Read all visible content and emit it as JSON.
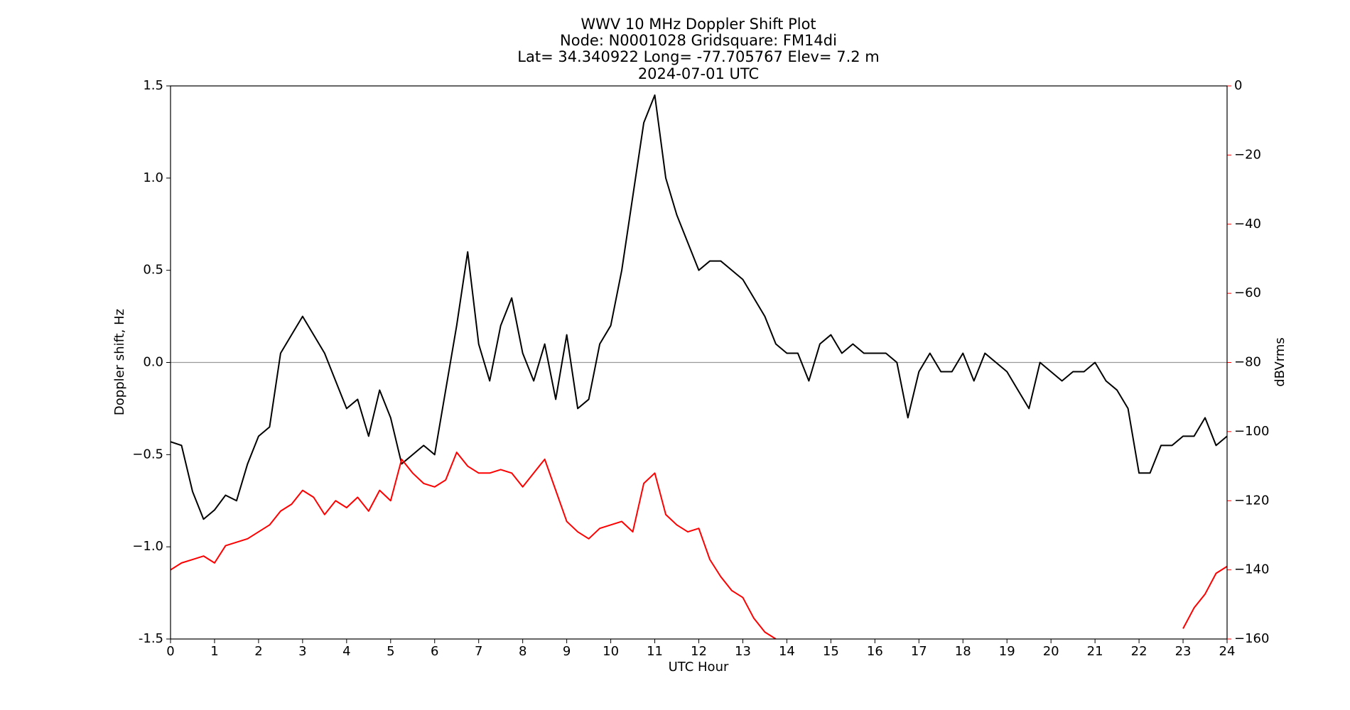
{
  "chart_data": {
    "type": "line",
    "title": [
      "WWV 10 MHz Doppler Shift Plot",
      "Node:  N0001028     Gridsquare:  FM14di",
      "Lat=   34.340922    Long= -77.705767    Elev= 7.2 m",
      "2024-07-01  UTC"
    ],
    "xlabel": "UTC Hour",
    "ylabel": "Doppler shift, Hz",
    "y2label": "dBVrms",
    "x": [
      0,
      0.25,
      0.5,
      0.75,
      1,
      1.25,
      1.5,
      1.75,
      2,
      2.25,
      2.5,
      2.75,
      3,
      3.25,
      3.5,
      3.75,
      4,
      4.25,
      4.5,
      4.75,
      5,
      5.25,
      5.5,
      5.75,
      6,
      6.25,
      6.5,
      6.75,
      7,
      7.25,
      7.5,
      7.75,
      8,
      8.25,
      8.5,
      8.75,
      9,
      9.25,
      9.5,
      9.75,
      10,
      10.25,
      10.5,
      10.75,
      11,
      11.25,
      11.5,
      11.75,
      12,
      12.25,
      12.5,
      12.75,
      13,
      13.25,
      13.5,
      13.75,
      14,
      14.25,
      14.5,
      14.75,
      15,
      15.25,
      15.5,
      15.75,
      16,
      16.25,
      16.5,
      16.75,
      17,
      17.25,
      17.5,
      17.75,
      18,
      18.25,
      18.5,
      18.75,
      19,
      19.25,
      19.5,
      19.75,
      20,
      20.25,
      20.5,
      20.75,
      21,
      21.25,
      21.5,
      21.75,
      22,
      22.25,
      22.5,
      22.75,
      23,
      23.25,
      23.5,
      23.75,
      24
    ],
    "series": [
      {
        "color": "#000000",
        "values": [
          -0.43,
          -0.45,
          -0.7,
          -0.85,
          -0.8,
          -0.72,
          -0.75,
          -0.55,
          -0.4,
          -0.35,
          0.05,
          0.15,
          0.25,
          0.15,
          0.05,
          -0.1,
          -0.25,
          -0.2,
          -0.4,
          -0.15,
          -0.3,
          -0.55,
          -0.5,
          -0.45,
          -0.5,
          -0.15,
          0.2,
          0.6,
          0.1,
          -0.1,
          0.2,
          0.35,
          0.05,
          -0.1,
          0.1,
          -0.2,
          0.15,
          -0.25,
          -0.2,
          0.1,
          0.2,
          0.5,
          0.9,
          1.3,
          1.45,
          1.0,
          0.8,
          0.65,
          0.5,
          0.55,
          0.55,
          0.5,
          0.45,
          0.35,
          0.25,
          0.1,
          0.05,
          0.05,
          -0.1,
          0.1,
          0.15,
          0.05,
          0.1,
          0.05,
          0.05,
          0.05,
          0.0,
          -0.3,
          -0.05,
          0.05,
          -0.05,
          -0.05,
          0.05,
          -0.1,
          0.05,
          0.0,
          -0.05,
          -0.15,
          -0.25,
          0.0,
          -0.05,
          -0.1,
          -0.05,
          -0.05,
          0.0,
          -0.1,
          -0.15,
          -0.25,
          -0.6,
          -0.6,
          -0.45,
          -0.45,
          -0.4,
          -0.4,
          -0.3,
          -0.45,
          -0.4
        ]
      },
      {
        "color": "#ff0000",
        "axis": "y2",
        "values": [
          -140,
          -138,
          -137,
          -136,
          -138,
          -133,
          -132,
          -131,
          -129,
          -127,
          -123,
          -121,
          -117,
          -119,
          -124,
          -120,
          -122,
          -119,
          -123,
          -117,
          -120,
          -108,
          -112,
          -115,
          -116,
          -114,
          -106,
          -110,
          -112,
          -112,
          -111,
          -112,
          -116,
          -112,
          -108,
          -117,
          -126,
          -129,
          -131,
          -128,
          -127,
          -126,
          -129,
          -115,
          -112,
          -124,
          -127,
          -129,
          -128,
          -137,
          -142,
          -146,
          -148,
          -154,
          -158,
          -160,
          null,
          null,
          null,
          null,
          null,
          null,
          null,
          null,
          null,
          null,
          null,
          null,
          null,
          null,
          null,
          null,
          null,
          null,
          null,
          null,
          null,
          null,
          null,
          null,
          null,
          null,
          null,
          null,
          null,
          null,
          null,
          null,
          null,
          null,
          null,
          null,
          -157,
          -151,
          -147,
          -141,
          -139
        ]
      }
    ],
    "xlim": [
      0,
      24
    ],
    "xticks": [
      0,
      1,
      2,
      3,
      4,
      5,
      6,
      7,
      8,
      9,
      10,
      11,
      12,
      13,
      14,
      15,
      16,
      17,
      18,
      19,
      20,
      21,
      22,
      23,
      24
    ],
    "ylim": [
      -1.5,
      1.5
    ],
    "yticks": [
      -1.5,
      {
        "value": -1.0,
        "label": "−1.0"
      },
      {
        "value": -0.5,
        "label": "−0.5"
      },
      {
        "value": 0,
        "label": "0.0"
      },
      0.5,
      {
        "value": 1.0,
        "label": "1.0"
      },
      1.5
    ],
    "y2lim": [
      -160,
      0
    ],
    "y2ticks": [
      {
        "value": -160,
        "label": "−160"
      },
      {
        "value": -140,
        "label": "−140"
      },
      {
        "value": -120,
        "label": "−120"
      },
      {
        "value": -100,
        "label": "−100"
      },
      {
        "value": -80,
        "label": "−80"
      },
      {
        "value": -60,
        "label": "−60"
      },
      {
        "value": -40,
        "label": "−40"
      },
      {
        "value": -20,
        "label": "−20"
      },
      0
    ],
    "reference_line": 0,
    "reference_color": "#999999"
  }
}
